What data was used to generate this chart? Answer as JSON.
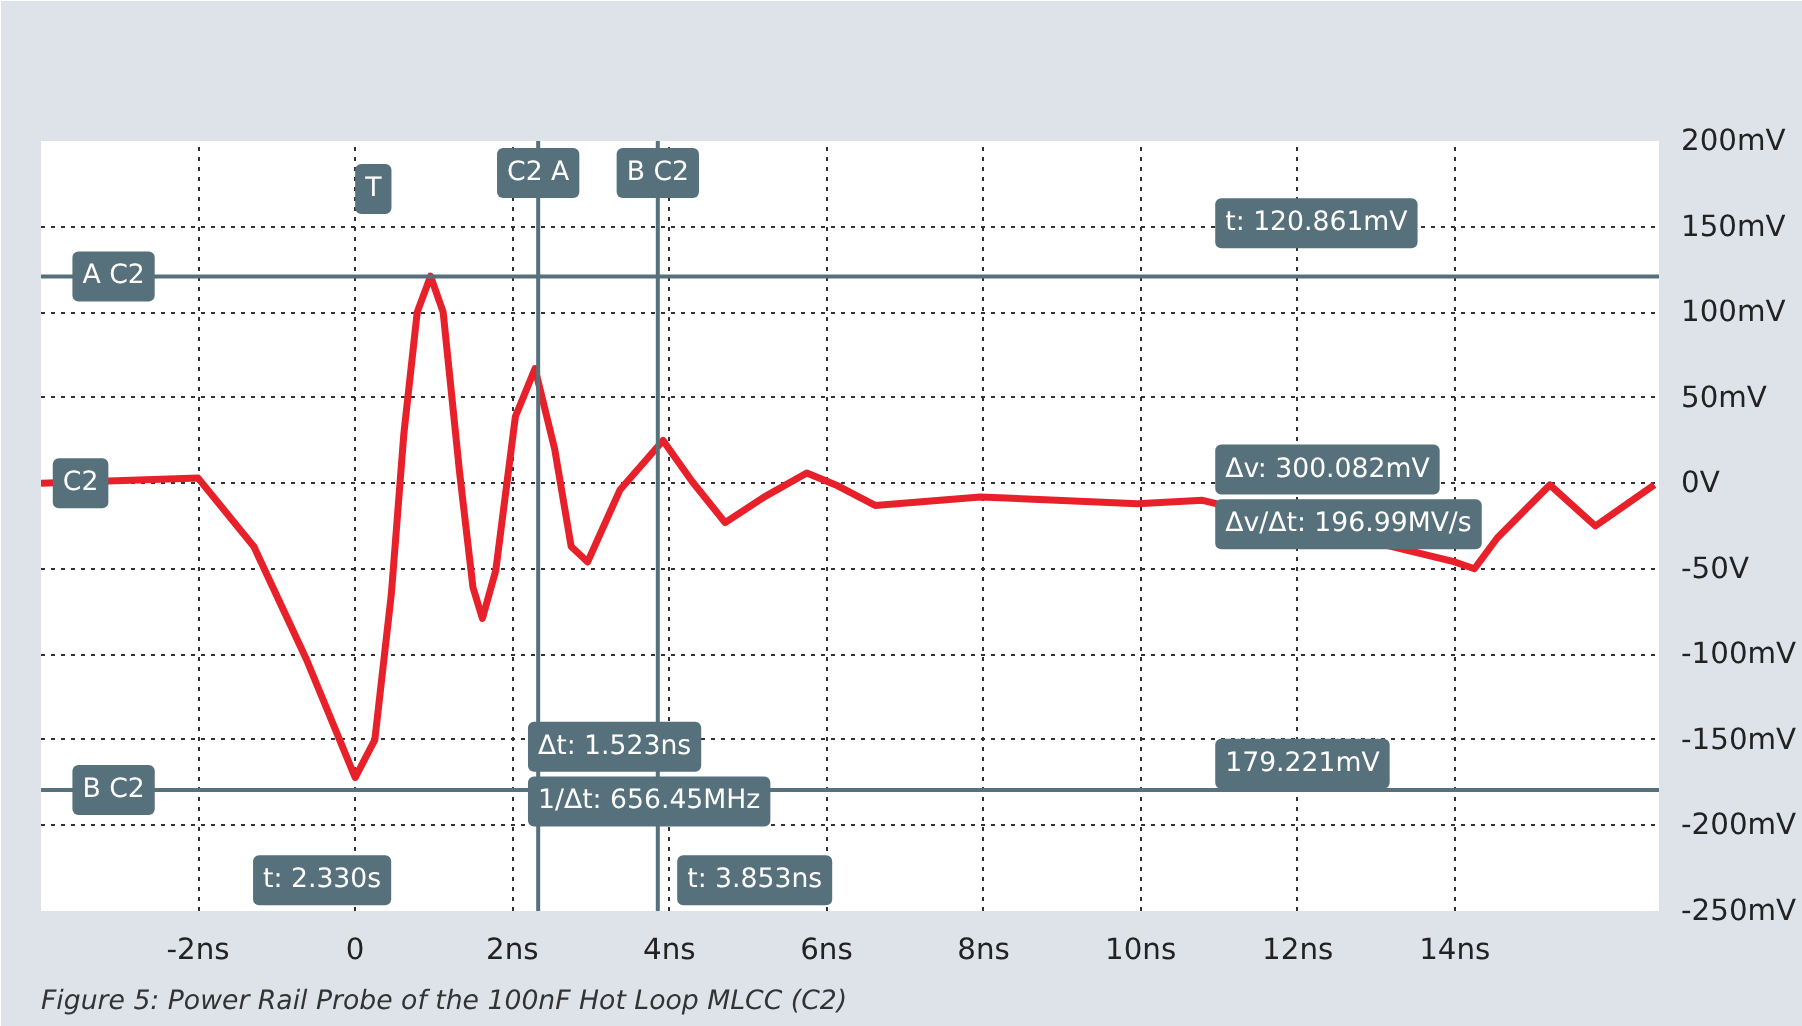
{
  "chart_data": {
    "type": "line",
    "x": [
      -4,
      -2,
      -1.29,
      -0.62,
      0,
      0.25,
      0.46,
      0.62,
      0.79,
      0.96,
      1.12,
      1.33,
      1.5,
      1.62,
      1.79,
      2.04,
      2.29,
      2.54,
      2.75,
      2.96,
      3.37,
      3.92,
      4.29,
      4.71,
      5.21,
      5.75,
      6.12,
      6.62,
      7.96,
      9.96,
      10.79,
      14.0,
      14.25,
      14.54,
      15.21,
      15.79,
      16.54
    ],
    "series": [
      {
        "color": "#e8202a",
        "values": [
          0,
          3,
          -37,
          -103,
          -172,
          -150,
          -65,
          29,
          100,
          121,
          100,
          6,
          -61,
          -79,
          -51,
          39,
          67,
          20,
          -37,
          -46,
          -4,
          25,
          1,
          -23,
          -8,
          6,
          -1,
          -13,
          -8,
          -12,
          -10,
          -46,
          -50,
          -32,
          -1,
          -25,
          -1
        ]
      }
    ],
    "xlim": [
      -4,
      16.6
    ],
    "ylim": [
      -250,
      200
    ],
    "xticks": [
      {
        "value": -2,
        "label": "-2ns"
      },
      0,
      {
        "value": 2,
        "label": "2ns"
      },
      {
        "value": 4,
        "label": "4ns"
      },
      {
        "value": 6,
        "label": "6ns"
      },
      {
        "value": 8,
        "label": "8ns"
      },
      {
        "value": 10,
        "label": "10ns"
      },
      {
        "value": 12,
        "label": "12ns"
      },
      {
        "value": 14,
        "label": "14ns"
      }
    ],
    "yticks": [
      {
        "value": 200,
        "label": "200mV"
      },
      {
        "value": 150,
        "label": "150mV"
      },
      {
        "value": 100,
        "label": "100mV"
      },
      {
        "value": 50,
        "label": "50mV"
      },
      {
        "value": 0,
        "label": "0V"
      },
      {
        "value": -50,
        "label": "-50V"
      },
      {
        "value": -100,
        "label": "-100mV"
      },
      {
        "value": -150,
        "label": "-150mV"
      },
      {
        "value": -200,
        "label": "-200mV"
      },
      {
        "value": -250,
        "label": "-250mV"
      }
    ],
    "grid": true,
    "line_style": "solid",
    "marker": "none",
    "ref_lines": [
      {
        "axis": "y",
        "value": 120.861,
        "label": "A C2",
        "color": "#56707c"
      },
      {
        "axis": "y",
        "value": -179.221,
        "label": "B C2",
        "color": "#56707c"
      },
      {
        "axis": "x",
        "value": 2.33,
        "label": "C2 A",
        "color": "#56707c"
      },
      {
        "axis": "x",
        "value": 3.853,
        "label": "B C2",
        "color": "#56707c"
      }
    ],
    "annotations": [
      "T",
      "C2",
      "t: 120.861mV",
      "Δv: 300.082mV",
      "Δv/Δt: 196.99MV/s",
      "179.221mV",
      "Δt: 1.523ns",
      "1/Δt: 656.45MHz",
      "t: 2.330s",
      "t: 3.853ns",
      "Figure 5: Power Rail Probe of the 100nF Hot Loop MLCC (C2)"
    ]
  }
}
